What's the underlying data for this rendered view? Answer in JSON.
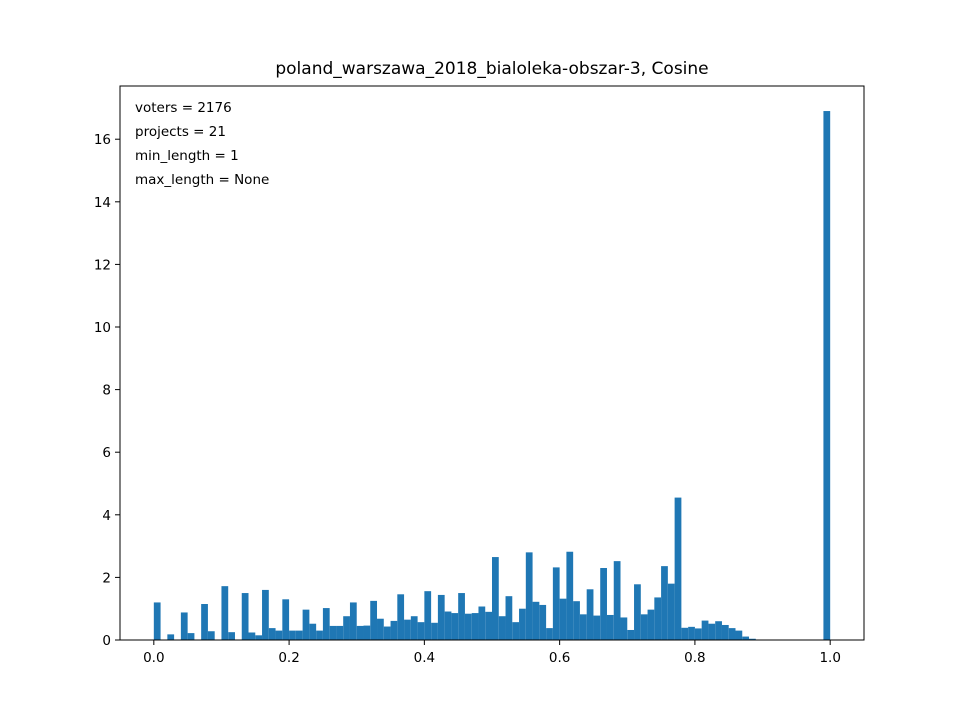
{
  "chart_data": {
    "type": "bar",
    "title": "poland_warszawa_2018_bialoleka-obszar-3, Cosine",
    "xlabel": "",
    "ylabel": "",
    "xlim": [
      -0.05,
      1.05
    ],
    "ylim": [
      0,
      17.7
    ],
    "xticks": [
      0.0,
      0.2,
      0.4,
      0.6,
      0.8,
      1.0
    ],
    "xtick_labels": [
      "0.0",
      "0.2",
      "0.4",
      "0.6",
      "0.8",
      "1.0"
    ],
    "yticks": [
      0,
      2,
      4,
      6,
      8,
      10,
      12,
      14,
      16
    ],
    "ytick_labels": [
      "0",
      "2",
      "4",
      "6",
      "8",
      "10",
      "12",
      "14",
      "16"
    ],
    "bar_color": "#1f77b4",
    "grid": false,
    "bin_width": 0.01,
    "bin_starts": [
      0.0,
      0.01,
      0.02,
      0.03,
      0.04,
      0.05,
      0.06,
      0.07,
      0.08,
      0.09,
      0.1,
      0.11,
      0.12,
      0.13,
      0.14,
      0.15,
      0.16,
      0.17,
      0.18,
      0.19,
      0.2,
      0.21,
      0.22,
      0.23,
      0.24,
      0.25,
      0.26,
      0.27,
      0.28,
      0.29,
      0.3,
      0.31,
      0.32,
      0.33,
      0.34,
      0.35,
      0.36,
      0.37,
      0.38,
      0.39,
      0.4,
      0.41,
      0.42,
      0.43,
      0.44,
      0.45,
      0.46,
      0.47,
      0.48,
      0.49,
      0.5,
      0.51,
      0.52,
      0.53,
      0.54,
      0.55,
      0.56,
      0.57,
      0.58,
      0.59,
      0.6,
      0.61,
      0.62,
      0.63,
      0.64,
      0.65,
      0.66,
      0.67,
      0.68,
      0.69,
      0.7,
      0.71,
      0.72,
      0.73,
      0.74,
      0.75,
      0.76,
      0.77,
      0.78,
      0.79,
      0.8,
      0.81,
      0.82,
      0.83,
      0.84,
      0.85,
      0.86,
      0.87,
      0.88,
      0.89,
      0.9,
      0.91,
      0.92,
      0.93,
      0.94,
      0.95,
      0.96,
      0.97,
      0.98,
      0.99
    ],
    "values": [
      1.2,
      0.0,
      0.18,
      0.0,
      0.88,
      0.22,
      0.0,
      1.15,
      0.28,
      0.0,
      1.72,
      0.25,
      0.0,
      1.5,
      0.24,
      0.15,
      1.6,
      0.38,
      0.3,
      1.3,
      0.3,
      0.3,
      0.97,
      0.52,
      0.3,
      1.02,
      0.45,
      0.45,
      0.76,
      1.2,
      0.45,
      0.46,
      1.25,
      0.68,
      0.43,
      0.61,
      1.46,
      0.65,
      0.76,
      0.57,
      1.56,
      0.55,
      1.44,
      0.91,
      0.86,
      1.5,
      0.84,
      0.86,
      1.07,
      0.9,
      2.65,
      0.76,
      1.4,
      0.57,
      1.0,
      2.8,
      1.22,
      1.12,
      0.38,
      2.32,
      1.32,
      2.82,
      1.24,
      0.82,
      1.62,
      0.78,
      2.3,
      0.8,
      2.52,
      0.72,
      0.32,
      1.78,
      0.82,
      0.97,
      1.36,
      2.36,
      1.8,
      4.55,
      0.39,
      0.42,
      0.37,
      0.62,
      0.52,
      0.6,
      0.48,
      0.38,
      0.3,
      0.11,
      0.04,
      0.0,
      0.0,
      0.0,
      0.0,
      0.0,
      0.0,
      0.0,
      0.0,
      0.0,
      0.0,
      16.9
    ]
  },
  "annotations": [
    "voters = 2176",
    "projects = 21",
    "min_length = 1",
    "max_length = None"
  ]
}
